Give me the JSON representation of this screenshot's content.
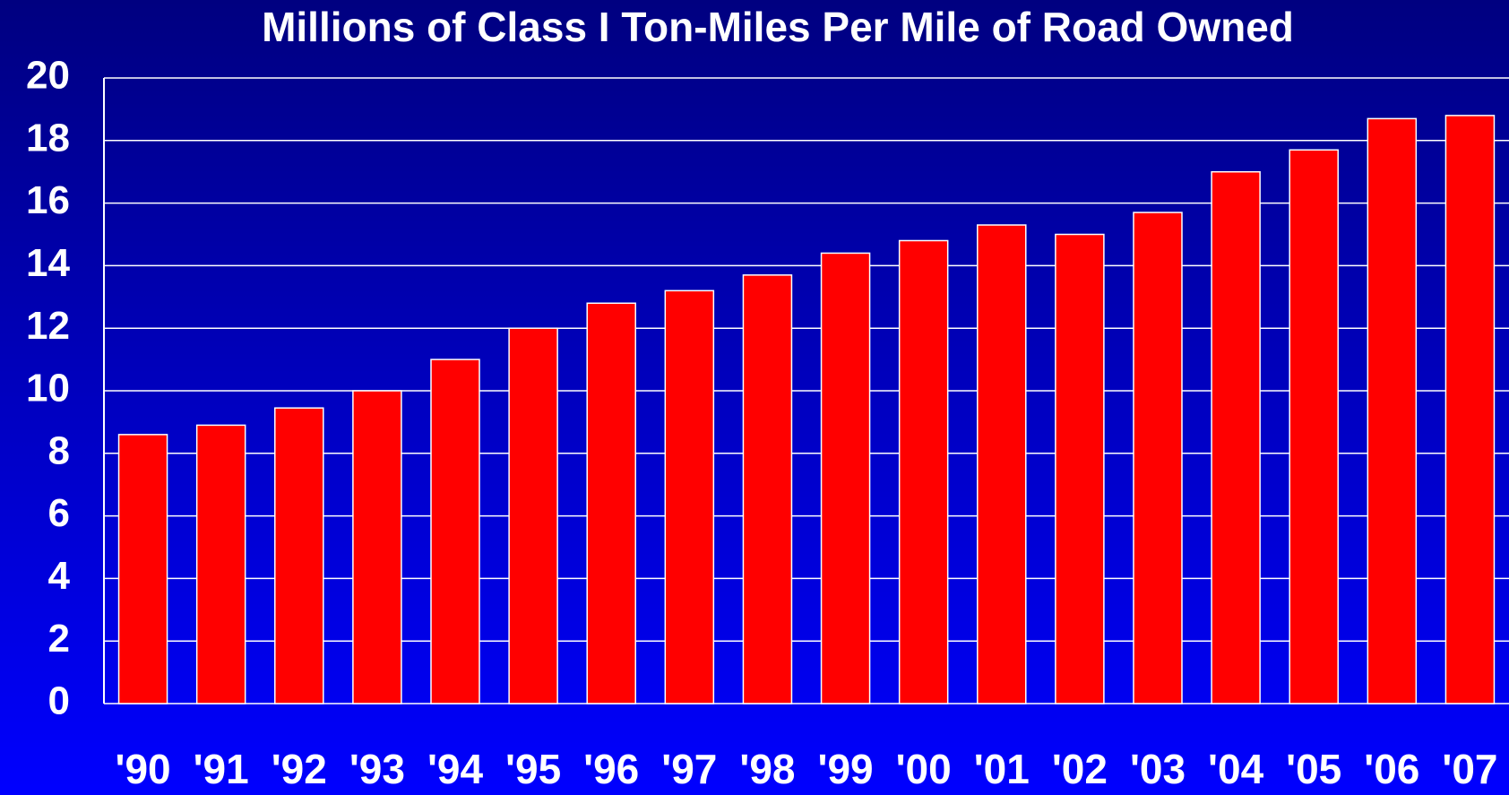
{
  "chart_data": {
    "type": "bar",
    "title": "Millions of Class I Ton-Miles Per Mile of Road Owned",
    "categories": [
      "'90",
      "'91",
      "'92",
      "'93",
      "'94",
      "'95",
      "'96",
      "'97",
      "'98",
      "'99",
      "'00",
      "'01",
      "'02",
      "'03",
      "'04",
      "'05",
      "'06",
      "'07"
    ],
    "values": [
      8.6,
      8.9,
      9.45,
      10.0,
      11.0,
      12.0,
      12.8,
      13.2,
      13.7,
      14.4,
      14.8,
      15.3,
      15.0,
      15.7,
      17.0,
      17.7,
      18.7,
      18.8
    ],
    "color": "#ff0000",
    "ylim": [
      0,
      20
    ],
    "yticks": [
      0,
      2,
      4,
      6,
      8,
      10,
      12,
      14,
      16,
      18,
      20
    ],
    "grid": true
  }
}
